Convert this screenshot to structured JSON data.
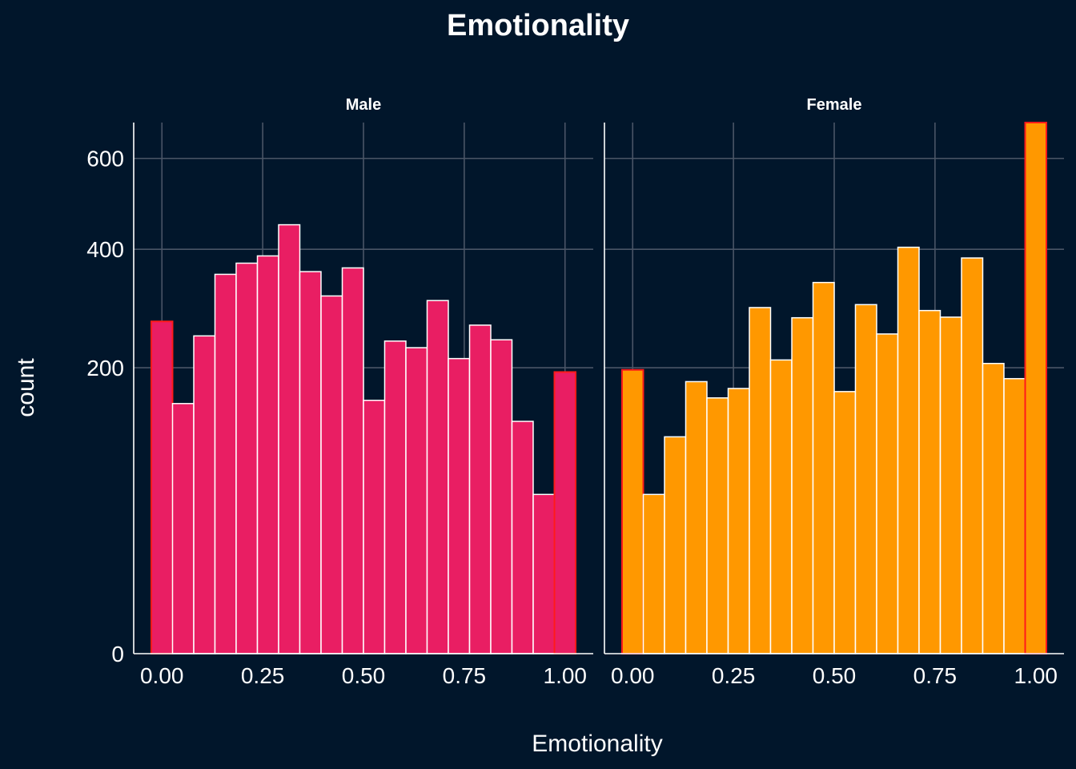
{
  "chart_data": {
    "type": "bar",
    "title": "Emotionality",
    "xlabel": "Emotionality",
    "ylabel": "count",
    "y_scale": "sqrt",
    "ylim": [
      0,
      690
    ],
    "y_ticks": [
      0,
      200,
      400,
      600
    ],
    "y_tick_labels": [
      "0",
      "200",
      "400",
      "600"
    ],
    "x_ticks": [
      0,
      0.25,
      0.5,
      0.75,
      1
    ],
    "x_tick_labels": [
      "0.00",
      "0.25",
      "0.50",
      "0.75",
      "1.00"
    ],
    "xlim": [
      -0.07,
      1.07
    ],
    "bin_width": 0.0526,
    "bin_centers": [
      0.0,
      0.0526,
      0.1053,
      0.1579,
      0.2105,
      0.2632,
      0.3158,
      0.3684,
      0.4211,
      0.4737,
      0.5263,
      0.5789,
      0.6316,
      0.6842,
      0.7368,
      0.7895,
      0.8421,
      0.8947,
      0.9474,
      1.0
    ],
    "grid": true,
    "legend": "none",
    "panels": [
      {
        "name": "Male",
        "fill_color": "#e91e63",
        "values": [
          270,
          153,
          247,
          352,
          373,
          387,
          450,
          357,
          313,
          364,
          157,
          239,
          229,
          305,
          213,
          264,
          241,
          132,
          62,
          194
        ]
      },
      {
        "name": "Female",
        "fill_color": "#ff9800",
        "values": [
          197,
          62,
          115,
          181,
          160,
          172,
          293,
          211,
          276,
          337,
          168,
          298,
          250,
          404,
          288,
          277,
          383,
          206,
          185,
          690
        ]
      }
    ],
    "edge_color": "#ffffff",
    "outer_edge_color": "#ff1a1a"
  }
}
